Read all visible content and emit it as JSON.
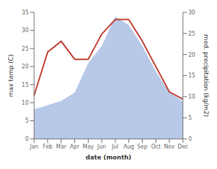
{
  "chart_data": {
    "type": "line",
    "categories": [
      "Jan",
      "Feb",
      "Mar",
      "Apr",
      "May",
      "Jun",
      "Jul",
      "Aug",
      "Sep",
      "Oct",
      "Nov",
      "Dec"
    ],
    "xlabel": "date (month)",
    "ylabel": "max temp (C)",
    "y2label": "med. precipitation (kg/m2)",
    "ylim": [
      0,
      35
    ],
    "yticks": [
      0,
      5,
      10,
      15,
      20,
      25,
      30,
      35
    ],
    "y2lim": [
      0,
      30
    ],
    "y2ticks": [
      0,
      5,
      10,
      15,
      20,
      25,
      30
    ],
    "grid": false,
    "series": [
      {
        "type": "area",
        "axis": "y2",
        "color": "#b8c9e8",
        "values": [
          7,
          8,
          9,
          11,
          18,
          22,
          29,
          27,
          22,
          16,
          11,
          9
        ]
      },
      {
        "type": "line",
        "color": "#c0392b",
        "values": [
          12,
          24,
          27,
          22,
          22,
          29,
          33,
          33,
          27,
          20,
          13,
          11
        ]
      }
    ]
  }
}
